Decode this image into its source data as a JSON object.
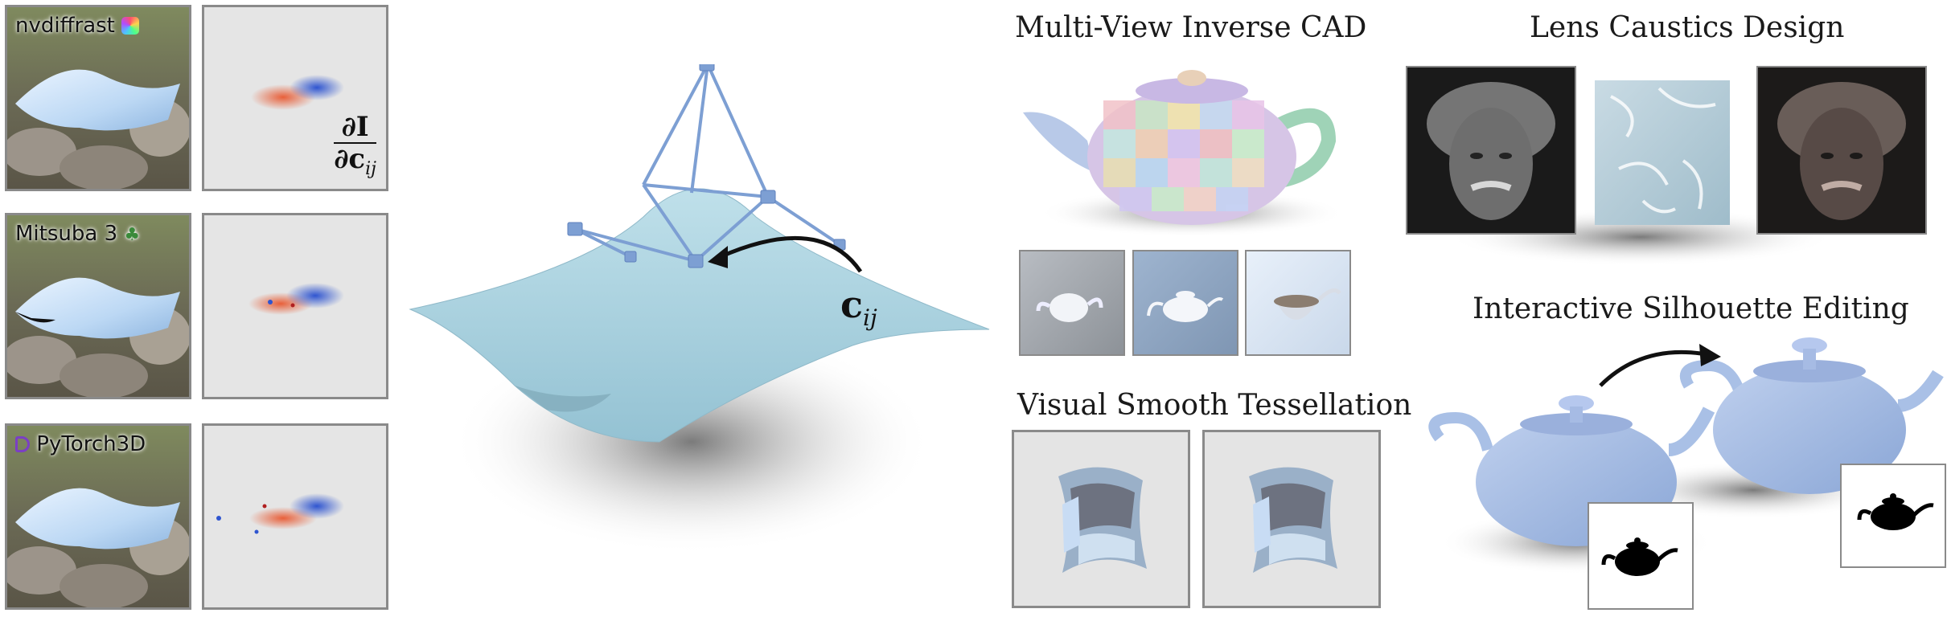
{
  "renderers": [
    {
      "name": "nvdiffrast",
      "icon": "rainbow-gem-icon"
    },
    {
      "name": "Mitsuba 3",
      "icon": "clover-icon"
    },
    {
      "name": "PyTorch3D",
      "icon": "pytorch3d-logo-icon"
    }
  ],
  "gradient_label": {
    "numerator": "∂I",
    "denominator": "∂c",
    "subscript": "ij"
  },
  "control_point_label": {
    "main": "c",
    "subscript": "ij"
  },
  "applications": {
    "multiview": {
      "title": "Multi-View Inverse CAD"
    },
    "tessellation": {
      "title": "Visual Smooth Tessellation"
    },
    "caustics": {
      "title": "Lens Caustics Design"
    },
    "silhouette": {
      "title": "Interactive Silhouette Editing"
    }
  },
  "colors": {
    "surface": "#a9d1de",
    "control_cage": "#7d9fd3",
    "gradient_positive": "#e8603a",
    "gradient_negative": "#3a62d6",
    "panel_bg": "#e5e5e5",
    "teapot_blue": "#9bb6df"
  }
}
